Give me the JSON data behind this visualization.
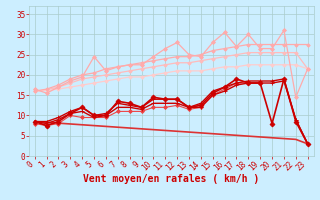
{
  "x": [
    0,
    1,
    2,
    3,
    4,
    5,
    6,
    7,
    8,
    9,
    10,
    11,
    12,
    13,
    14,
    15,
    16,
    17,
    18,
    19,
    20,
    21,
    22,
    23
  ],
  "lines": [
    {
      "color": "#ffaaaa",
      "values": [
        16.5,
        15.5,
        17.0,
        18.5,
        19.5,
        24.5,
        21.0,
        22.0,
        22.5,
        22.5,
        24.5,
        26.5,
        28.0,
        25.0,
        24.5,
        28.0,
        30.5,
        27.0,
        30.0,
        26.5,
        26.5,
        31.0,
        14.5,
        21.5
      ],
      "marker": "D",
      "markersize": 2.0,
      "linewidth": 0.9,
      "zorder": 3
    },
    {
      "color": "#ffaaaa",
      "values": [
        16.0,
        16.5,
        17.5,
        19.0,
        20.0,
        20.5,
        21.5,
        22.0,
        22.5,
        23.0,
        23.5,
        24.0,
        24.5,
        24.5,
        25.0,
        26.0,
        26.5,
        27.0,
        27.5,
        27.5,
        27.5,
        27.5,
        27.5,
        27.5
      ],
      "marker": "D",
      "markersize": 1.8,
      "linewidth": 0.9,
      "zorder": 3
    },
    {
      "color": "#ffbbbb",
      "values": [
        16.0,
        16.3,
        17.0,
        18.0,
        19.0,
        19.5,
        20.0,
        20.5,
        21.0,
        21.5,
        22.0,
        22.5,
        23.0,
        23.0,
        23.5,
        24.0,
        24.5,
        25.0,
        25.5,
        25.5,
        25.5,
        25.5,
        25.5,
        21.5
      ],
      "marker": "D",
      "markersize": 1.8,
      "linewidth": 0.9,
      "zorder": 2
    },
    {
      "color": "#ffcccc",
      "values": [
        16.0,
        16.2,
        16.5,
        17.0,
        17.5,
        18.0,
        18.5,
        19.0,
        19.5,
        19.5,
        20.0,
        20.5,
        21.0,
        21.0,
        21.0,
        21.5,
        22.0,
        22.0,
        22.5,
        22.5,
        22.5,
        22.5,
        22.5,
        21.5
      ],
      "marker": "D",
      "markersize": 1.8,
      "linewidth": 0.9,
      "zorder": 2
    },
    {
      "color": "#cc0000",
      "values": [
        8.5,
        7.5,
        8.5,
        10.5,
        12.0,
        10.0,
        10.0,
        13.5,
        13.0,
        12.0,
        14.5,
        14.0,
        14.0,
        12.0,
        12.5,
        15.5,
        17.0,
        19.0,
        18.0,
        18.0,
        8.0,
        19.0,
        8.5,
        3.0
      ],
      "marker": "D",
      "markersize": 2.5,
      "linewidth": 1.2,
      "zorder": 5
    },
    {
      "color": "#cc0000",
      "values": [
        8.5,
        8.0,
        9.0,
        10.5,
        11.0,
        9.5,
        10.0,
        12.0,
        12.0,
        11.5,
        13.0,
        13.0,
        13.0,
        12.0,
        12.0,
        15.0,
        16.0,
        17.5,
        18.0,
        18.0,
        18.0,
        18.5,
        9.0,
        3.0
      ],
      "marker": "+",
      "markersize": 3.5,
      "linewidth": 1.0,
      "zorder": 5
    },
    {
      "color": "#cc0000",
      "values": [
        8.5,
        8.5,
        9.5,
        11.0,
        12.0,
        10.0,
        10.5,
        13.0,
        12.5,
        12.0,
        14.0,
        14.0,
        14.0,
        12.0,
        13.0,
        16.0,
        17.0,
        18.0,
        18.5,
        18.5,
        18.5,
        19.0,
        9.0,
        3.0
      ],
      "marker": "+",
      "markersize": 3.5,
      "linewidth": 1.0,
      "zorder": 5
    },
    {
      "color": "#dd3333",
      "values": [
        8.5,
        8.3,
        8.1,
        7.9,
        7.7,
        7.5,
        7.3,
        7.1,
        6.9,
        6.7,
        6.5,
        6.3,
        6.1,
        5.9,
        5.7,
        5.5,
        5.3,
        5.1,
        4.9,
        4.7,
        4.5,
        4.3,
        4.1,
        3.0
      ],
      "marker": null,
      "markersize": 0,
      "linewidth": 1.2,
      "zorder": 4
    },
    {
      "color": "#ee4444",
      "values": [
        8.0,
        7.5,
        8.0,
        10.0,
        9.5,
        9.5,
        9.5,
        11.0,
        11.0,
        11.0,
        12.0,
        12.0,
        12.5,
        11.5,
        12.0,
        15.0,
        16.5,
        18.0,
        18.0,
        18.0,
        null,
        null,
        null,
        null
      ],
      "marker": "D",
      "markersize": 2.0,
      "linewidth": 0.8,
      "zorder": 4
    }
  ],
  "xlabel": "Vent moyen/en rafales ( km/h )",
  "xlim": [
    -0.5,
    23.5
  ],
  "ylim": [
    0,
    37
  ],
  "yticks": [
    0,
    5,
    10,
    15,
    20,
    25,
    30,
    35
  ],
  "xticks": [
    0,
    1,
    2,
    3,
    4,
    5,
    6,
    7,
    8,
    9,
    10,
    11,
    12,
    13,
    14,
    15,
    16,
    17,
    18,
    19,
    20,
    21,
    22,
    23
  ],
  "background_color": "#cceeff",
  "grid_color": "#aacccc",
  "tick_color": "#cc0000",
  "label_color": "#cc0000",
  "xlabel_fontsize": 7,
  "tick_fontsize": 5.5,
  "figsize": [
    3.2,
    2.0
  ],
  "dpi": 100
}
